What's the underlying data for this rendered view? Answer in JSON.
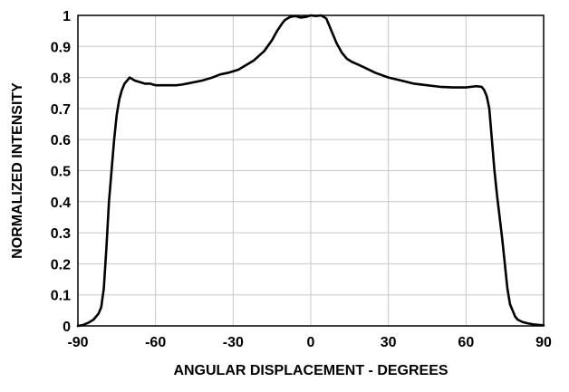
{
  "chart_data": {
    "type": "line",
    "title": "",
    "xlabel": "ANGULAR DISPLACEMENT - DEGREES",
    "ylabel": "NORMALIZED INTENSITY",
    "xlim": [
      -90,
      90
    ],
    "ylim": [
      0,
      1
    ],
    "xticks": [
      -90,
      -60,
      -30,
      0,
      30,
      60,
      90
    ],
    "xtick_labels": [
      "-90",
      "-60",
      "-30",
      "0",
      "30",
      "60",
      "90"
    ],
    "yticks": [
      0,
      0.1,
      0.2,
      0.3,
      0.4,
      0.5,
      0.6,
      0.7,
      0.8,
      0.9,
      1
    ],
    "ytick_labels": [
      "0",
      "0.1",
      "0.2",
      "0.3",
      "0.4",
      "0.5",
      "0.6",
      "0.7",
      "0.8",
      "0.9",
      "1"
    ],
    "grid": true,
    "legend": "none",
    "line_color": "#000000",
    "grid_color": "#c8c8c8",
    "series": [
      {
        "x": [
          -90,
          -88,
          -86,
          -84,
          -82,
          -81,
          -80,
          -79,
          -78,
          -77,
          -76,
          -75,
          -74,
          -73,
          -72,
          -71,
          -70,
          -69,
          -68,
          -66,
          -64,
          -62,
          -60,
          -58,
          -55,
          -52,
          -50,
          -48,
          -45,
          -42,
          -40,
          -38,
          -35,
          -32,
          -30,
          -28,
          -25,
          -22,
          -20,
          -18,
          -15,
          -13,
          -11,
          -10,
          -8,
          -6,
          -4,
          -2,
          0,
          2,
          4,
          6,
          7,
          8,
          9,
          10,
          12,
          14,
          16,
          20,
          25,
          30,
          35,
          40,
          45,
          50,
          55,
          60,
          62,
          64,
          66,
          67,
          68,
          69,
          70,
          71,
          72,
          73,
          74,
          75,
          76,
          77,
          78,
          79,
          80,
          82,
          84,
          86,
          88,
          90
        ],
        "y": [
          0,
          0.003,
          0.01,
          0.02,
          0.04,
          0.06,
          0.12,
          0.25,
          0.4,
          0.5,
          0.6,
          0.68,
          0.73,
          0.76,
          0.78,
          0.79,
          0.8,
          0.795,
          0.79,
          0.785,
          0.78,
          0.78,
          0.775,
          0.775,
          0.775,
          0.775,
          0.777,
          0.78,
          0.785,
          0.79,
          0.795,
          0.8,
          0.81,
          0.815,
          0.82,
          0.825,
          0.84,
          0.855,
          0.87,
          0.885,
          0.92,
          0.95,
          0.975,
          0.985,
          0.995,
          0.998,
          0.993,
          0.995,
          1.0,
          0.998,
          1.0,
          0.99,
          0.97,
          0.95,
          0.93,
          0.91,
          0.88,
          0.86,
          0.85,
          0.835,
          0.815,
          0.8,
          0.79,
          0.78,
          0.775,
          0.77,
          0.768,
          0.768,
          0.77,
          0.772,
          0.77,
          0.76,
          0.74,
          0.7,
          0.6,
          0.5,
          0.42,
          0.35,
          0.28,
          0.2,
          0.12,
          0.07,
          0.05,
          0.03,
          0.02,
          0.012,
          0.008,
          0.005,
          0.003,
          0.002
        ]
      }
    ]
  }
}
